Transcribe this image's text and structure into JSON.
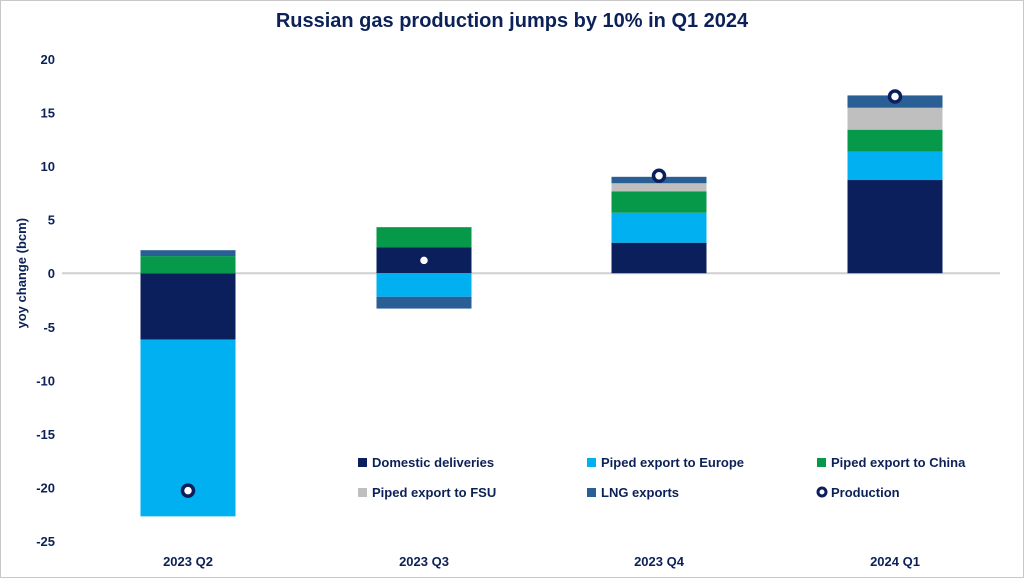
{
  "chart_data": {
    "type": "bar",
    "stacked": true,
    "title": "Russian gas production jumps by 10% in Q1 2024",
    "xlabel": "",
    "ylabel": "yoy change (bcm)",
    "ylim": [
      -25,
      20
    ],
    "yticks": [
      20,
      15,
      10,
      5,
      0,
      -5,
      -10,
      -15,
      -20,
      -25
    ],
    "grid": false,
    "legend_position": "bottom-right inside",
    "categories": [
      "2023 Q2",
      "2023 Q3",
      "2023 Q4",
      "2024 Q1"
    ],
    "series": [
      {
        "name": "Domestic deliveries",
        "color": "#0b1f5c",
        "values": [
          -6.2,
          2.4,
          2.85,
          8.7
        ]
      },
      {
        "name": "Piped export to Europe",
        "color": "#00b0f0",
        "values": [
          -16.5,
          -2.2,
          2.8,
          2.65
        ]
      },
      {
        "name": "Piped export to China",
        "color": "#06994a",
        "values": [
          1.6,
          1.9,
          2.0,
          2.05
        ]
      },
      {
        "name": "Piped export to FSU",
        "color": "#bfbfbf",
        "values": [
          0,
          0,
          0.75,
          2.05
        ]
      },
      {
        "name": "LNG exports",
        "color": "#2a5f96",
        "values": [
          0.55,
          -1.1,
          0.6,
          1.15
        ]
      }
    ],
    "line_series": {
      "name": "Production",
      "type": "marker",
      "values": [
        -20.3,
        1.2,
        9.1,
        16.5
      ]
    }
  }
}
